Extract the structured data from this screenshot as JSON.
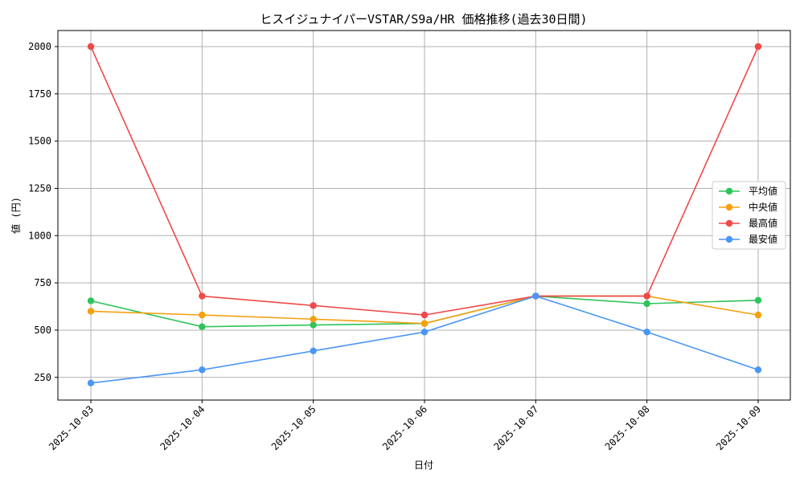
{
  "chart_data": {
    "type": "line",
    "title": "ヒスイジュナイパーVSTAR/S9a/HR 価格推移(過去30日間)",
    "xlabel": "日付",
    "ylabel": "値 (円)",
    "categories": [
      "2025-10-03",
      "2025-10-04",
      "2025-10-05",
      "2025-10-06",
      "2025-10-07",
      "2025-10-08",
      "2025-10-09"
    ],
    "ylim": [
      130,
      2085
    ],
    "yticks": [
      250,
      500,
      750,
      1000,
      1250,
      1500,
      1750,
      2000
    ],
    "grid": true,
    "legend_position": "center-right",
    "series": [
      {
        "name": "平均値",
        "color": "#2ec45a",
        "values": [
          655,
          518,
          527,
          535,
          680,
          640,
          658
        ]
      },
      {
        "name": "中央値",
        "color": "#f5a00f",
        "values": [
          600,
          580,
          558,
          535,
          680,
          680,
          580
        ]
      },
      {
        "name": "最高値",
        "color": "#f04848",
        "values": [
          2000,
          680,
          630,
          580,
          680,
          680,
          2000
        ]
      },
      {
        "name": "最安値",
        "color": "#4a96f5",
        "values": [
          220,
          290,
          390,
          490,
          680,
          490,
          290
        ]
      }
    ]
  }
}
